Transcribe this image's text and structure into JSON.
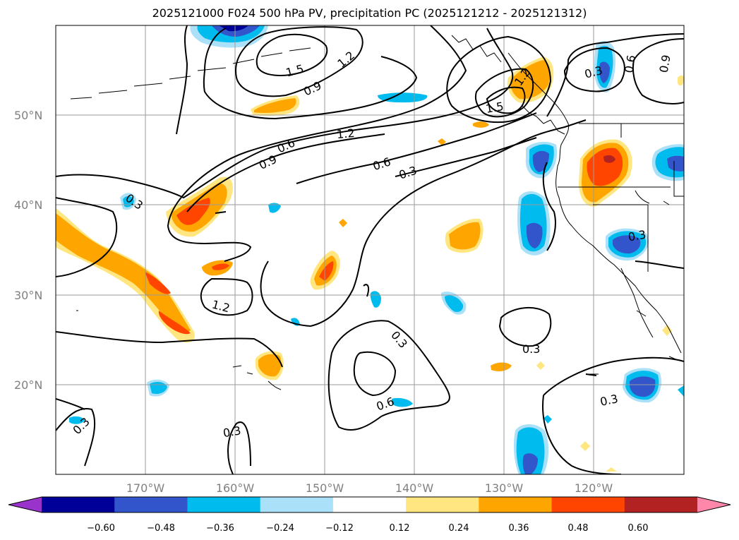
{
  "title": "2025121000 F024 500 hPa PV, precipitation PC (2025121212 - 2025121312)",
  "lat_labels": [
    "50°N",
    "40°N",
    "30°N",
    "20°N"
  ],
  "lon_labels": [
    "170°W",
    "160°W",
    "150°W",
    "140°W",
    "130°W",
    "120°W"
  ],
  "contour_labels": [
    "1.5",
    "1.2",
    "0.9",
    "0.6",
    "1.2",
    "0.9",
    "0.6",
    "0.3",
    "1.2",
    "1.5",
    "0.3",
    "0.6",
    "0.9",
    "0.3",
    "1.2",
    "0.3",
    "0.6",
    "0.3",
    "0.3",
    "0.3",
    "0.3",
    "0.3"
  ],
  "colorbar": {
    "ticks": [
      "−0.60",
      "−0.48",
      "−0.36",
      "−0.24",
      "−0.12",
      "0.12",
      "0.24",
      "0.36",
      "0.48",
      "0.60"
    ],
    "colors": [
      "#9933cc",
      "#000099",
      "#3355cc",
      "#00bbee",
      "#aae0f8",
      "#ffffff",
      "#ffe680",
      "#ffa500",
      "#ff4500",
      "#b22222",
      "#ff88aa"
    ]
  },
  "fill_colors": {
    "neg_light": "#aae0f8",
    "neg_mid": "#00bbee",
    "neg_dark": "#3355cc",
    "neg_darkest": "#000099",
    "pos_light": "#ffe680",
    "pos_mid": "#ffa500",
    "pos_dark": "#ff4500"
  }
}
